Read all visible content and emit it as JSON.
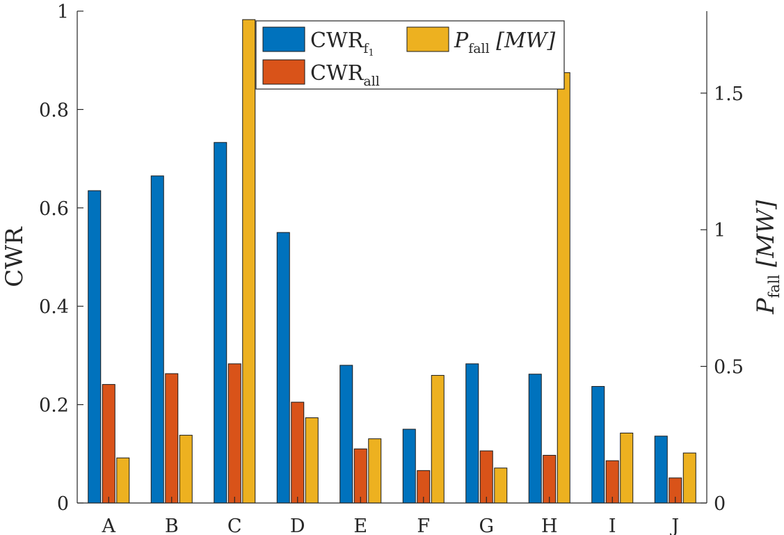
{
  "chart_data": {
    "type": "bar",
    "categories": [
      "A",
      "B",
      "C",
      "D",
      "E",
      "F",
      "G",
      "H",
      "I",
      "J"
    ],
    "series": [
      {
        "name": "CWR_f1",
        "legend_base": "CWR",
        "legend_sub": "f",
        "legend_subsub": "1",
        "axis": "left",
        "color": "#0072BD",
        "values": [
          0.635,
          0.665,
          0.733,
          0.55,
          0.28,
          0.15,
          0.283,
          0.262,
          0.237,
          0.136
        ]
      },
      {
        "name": "CWR_all",
        "legend_base": "CWR",
        "legend_sub": "all",
        "axis": "left",
        "color": "#D95319",
        "values": [
          0.241,
          0.263,
          0.283,
          0.205,
          0.11,
          0.066,
          0.106,
          0.097,
          0.086,
          0.051
        ]
      },
      {
        "name": "P_fall [MW]",
        "legend_base": "P",
        "legend_sub": "fall",
        "legend_suffix": " [MW]",
        "axis": "right",
        "color": "#EDB120",
        "values": [
          0.165,
          0.248,
          1.769,
          0.312,
          0.235,
          0.467,
          0.128,
          1.575,
          0.256,
          0.183
        ]
      }
    ],
    "yleft": {
      "label": "CWR",
      "lim": [
        0,
        1
      ],
      "ticks": [
        0,
        0.2,
        0.4,
        0.6,
        0.8,
        1
      ],
      "tick_labels": [
        "0",
        "0.2",
        "0.4",
        "0.6",
        "0.8",
        "1"
      ]
    },
    "yright": {
      "label_base": "P",
      "label_sub": "fall",
      "label_suffix": " [MW]",
      "lim": [
        0,
        1.8
      ],
      "ticks": [
        0,
        0.5,
        1,
        1.5
      ],
      "tick_labels": [
        "0",
        "0.5",
        "1",
        "1.5"
      ]
    },
    "legend_position": "top-center",
    "grid": false
  }
}
